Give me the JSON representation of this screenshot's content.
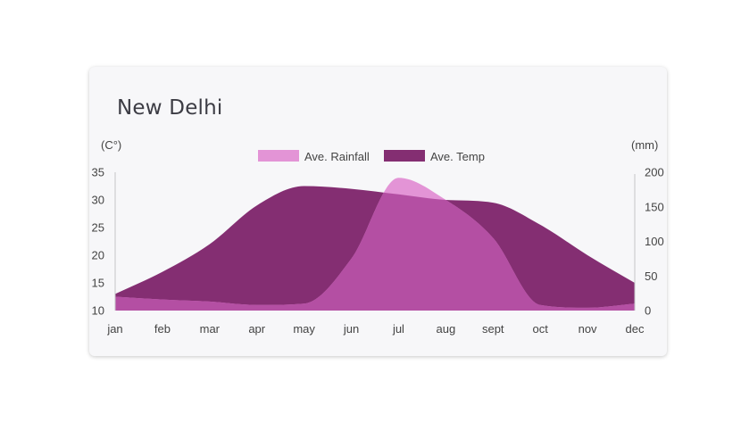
{
  "chart_data": {
    "type": "area",
    "title": "New Delhi",
    "categories": [
      "jan",
      "feb",
      "mar",
      "apr",
      "may",
      "jun",
      "jul",
      "aug",
      "sept",
      "oct",
      "nov",
      "dec"
    ],
    "series": [
      {
        "name": "Ave. Rainfall",
        "axis": "right",
        "color": "#e394d6",
        "values": [
          20,
          16,
          13,
          8,
          10,
          75,
          192,
          160,
          105,
          8,
          4,
          10
        ]
      },
      {
        "name": "Ave. Temp",
        "axis": "left",
        "color": "#842e72",
        "values": [
          13,
          17,
          22,
          29,
          32.5,
          32,
          31,
          30,
          29.5,
          25.5,
          20,
          15
        ]
      }
    ],
    "overlap_color": "#b44fa3",
    "y_left": {
      "label": "(C°)",
      "ylim": [
        10,
        35
      ],
      "ticks": [
        "10",
        "15",
        "20",
        "25",
        "30",
        "35"
      ]
    },
    "y_right": {
      "label": "(mm)",
      "ylim": [
        0,
        200
      ],
      "ticks": [
        "0",
        "50",
        "100",
        "150",
        "200"
      ]
    },
    "legend_position": "top-center",
    "grid": false
  }
}
